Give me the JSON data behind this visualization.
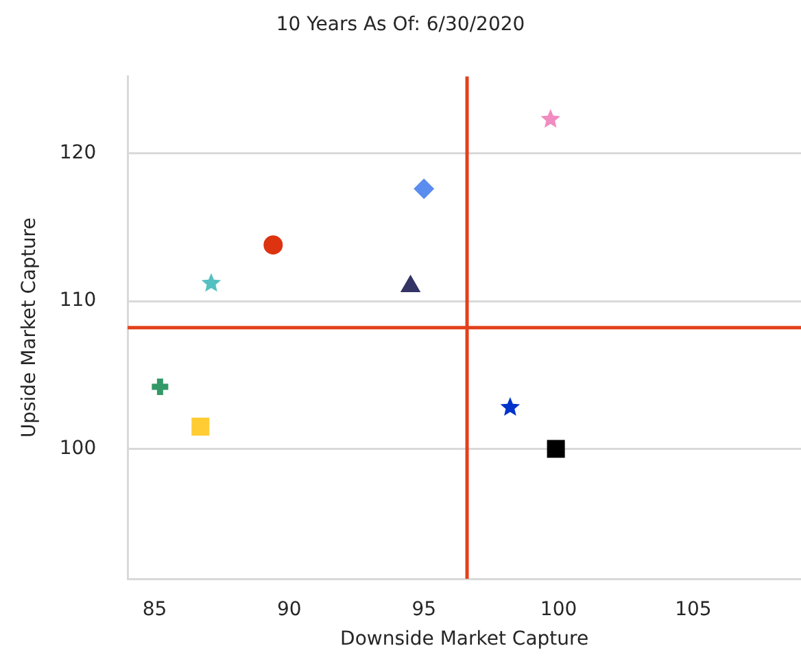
{
  "chart_data": {
    "type": "scatter",
    "title": "10 Years As Of: 6/30/2020",
    "xlabel": "Downside Market Capture",
    "ylabel": "Upside Market Capture",
    "series": [
      {
        "color": "#339966",
        "x": [
          85.2
        ],
        "values": [
          104.2
        ],
        "marker": "cross"
      },
      {
        "color": "#ffcc33",
        "x": [
          86.7
        ],
        "values": [
          101.5
        ],
        "marker": "square"
      },
      {
        "color": "#55c0c0",
        "x": [
          87.1
        ],
        "values": [
          111.2
        ],
        "marker": "star"
      },
      {
        "color": "#dd3311",
        "x": [
          89.4
        ],
        "values": [
          113.8
        ],
        "marker": "circle"
      },
      {
        "color": "#333366",
        "x": [
          94.5
        ],
        "values": [
          111.0
        ],
        "marker": "triangle"
      },
      {
        "color": "#5b8def",
        "x": [
          95.0
        ],
        "values": [
          117.6
        ],
        "marker": "diamond"
      },
      {
        "color": "#0033cc",
        "x": [
          98.2
        ],
        "values": [
          102.8
        ],
        "marker": "star"
      },
      {
        "color": "#000000",
        "x": [
          99.9
        ],
        "values": [
          100.0
        ],
        "marker": "square"
      },
      {
        "color": "#f08cc0",
        "x": [
          99.7
        ],
        "values": [
          122.3
        ],
        "marker": "star"
      }
    ],
    "xlim": [
      84,
      109
    ],
    "xticks": [
      85,
      90,
      95,
      100,
      105
    ],
    "ylim": [
      91.2,
      125.2
    ],
    "yticks": [
      100,
      110,
      120
    ],
    "ref_lines": [
      {
        "axis": "x",
        "value": 96.6,
        "color": "#e2401b"
      },
      {
        "axis": "y",
        "value": 108.2,
        "color": "#e2401b"
      }
    ],
    "grid": "y"
  }
}
